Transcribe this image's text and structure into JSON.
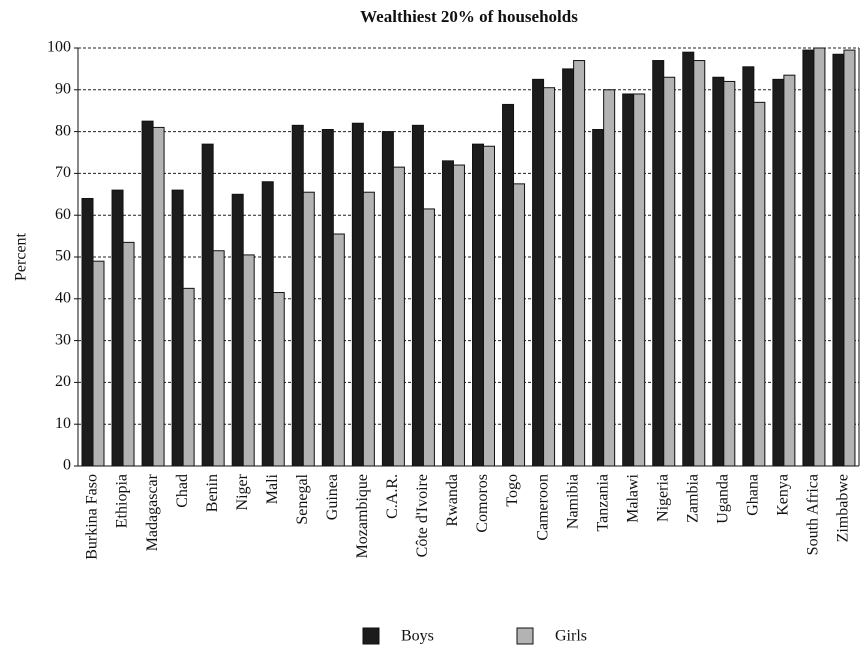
{
  "chart_data": {
    "type": "bar",
    "title": "Wealthiest 20% of households",
    "y_label": "Percent",
    "categories": [
      "Burkina Faso",
      "Ethiopia",
      "Madagascar",
      "Chad",
      "Benin",
      "Niger",
      "Mali",
      "Senegal",
      "Guinea",
      "Mozambique",
      "C.A.R.",
      "Côte d'Ivoire",
      "Rwanda",
      "Comoros",
      "Togo",
      "Cameroon",
      "Namibia",
      "Tanzania",
      "Malawi",
      "Nigeria",
      "Zambia",
      "Uganda",
      "Ghana",
      "Kenya",
      "South Africa",
      "Zimbabwe"
    ],
    "series": [
      {
        "name": "Boys",
        "color": "#1c1c1c",
        "values": [
          64,
          66,
          82.5,
          66,
          77,
          65,
          68,
          81.5,
          80.5,
          82,
          80,
          81.5,
          73,
          77,
          86.5,
          92.5,
          95,
          80.5,
          89,
          97,
          99,
          93,
          95.5,
          92.5,
          99.5,
          98.5
        ]
      },
      {
        "name": "Girls",
        "color": "#b3b3b3",
        "values": [
          49,
          53.5,
          81,
          42.5,
          51.5,
          50.5,
          41.5,
          65.5,
          55.5,
          65.5,
          71.5,
          61.5,
          72,
          76.5,
          67.5,
          90.5,
          97,
          90,
          89,
          93,
          97,
          92,
          87,
          93.5,
          100,
          99.5
        ]
      }
    ],
    "ylim": [
      0,
      100
    ],
    "yticks": [
      0,
      10,
      20,
      30,
      40,
      50,
      60,
      70,
      80,
      90,
      100
    ],
    "grid": true
  }
}
